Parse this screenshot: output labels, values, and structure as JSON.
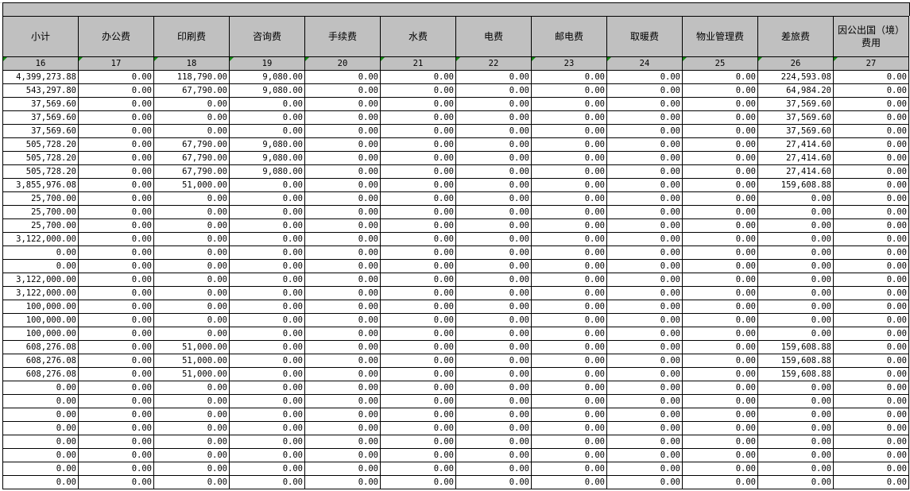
{
  "headers": [
    "小计",
    "办公费",
    "印刷费",
    "咨询费",
    "手续费",
    "水费",
    "电费",
    "邮电费",
    "取暖费",
    "物业管理费",
    "差旅费",
    "因公出国（境）费用"
  ],
  "column_numbers": [
    "16",
    "17",
    "18",
    "19",
    "20",
    "21",
    "22",
    "23",
    "24",
    "25",
    "26",
    "27"
  ],
  "rows": [
    [
      "4,399,273.88",
      "0.00",
      "118,790.00",
      "9,080.00",
      "0.00",
      "0.00",
      "0.00",
      "0.00",
      "0.00",
      "0.00",
      "224,593.08",
      "0.00"
    ],
    [
      "543,297.80",
      "0.00",
      "67,790.00",
      "9,080.00",
      "0.00",
      "0.00",
      "0.00",
      "0.00",
      "0.00",
      "0.00",
      "64,984.20",
      "0.00"
    ],
    [
      "37,569.60",
      "0.00",
      "0.00",
      "0.00",
      "0.00",
      "0.00",
      "0.00",
      "0.00",
      "0.00",
      "0.00",
      "37,569.60",
      "0.00"
    ],
    [
      "37,569.60",
      "0.00",
      "0.00",
      "0.00",
      "0.00",
      "0.00",
      "0.00",
      "0.00",
      "0.00",
      "0.00",
      "37,569.60",
      "0.00"
    ],
    [
      "37,569.60",
      "0.00",
      "0.00",
      "0.00",
      "0.00",
      "0.00",
      "0.00",
      "0.00",
      "0.00",
      "0.00",
      "37,569.60",
      "0.00"
    ],
    [
      "505,728.20",
      "0.00",
      "67,790.00",
      "9,080.00",
      "0.00",
      "0.00",
      "0.00",
      "0.00",
      "0.00",
      "0.00",
      "27,414.60",
      "0.00"
    ],
    [
      "505,728.20",
      "0.00",
      "67,790.00",
      "9,080.00",
      "0.00",
      "0.00",
      "0.00",
      "0.00",
      "0.00",
      "0.00",
      "27,414.60",
      "0.00"
    ],
    [
      "505,728.20",
      "0.00",
      "67,790.00",
      "9,080.00",
      "0.00",
      "0.00",
      "0.00",
      "0.00",
      "0.00",
      "0.00",
      "27,414.60",
      "0.00"
    ],
    [
      "3,855,976.08",
      "0.00",
      "51,000.00",
      "0.00",
      "0.00",
      "0.00",
      "0.00",
      "0.00",
      "0.00",
      "0.00",
      "159,608.88",
      "0.00"
    ],
    [
      "25,700.00",
      "0.00",
      "0.00",
      "0.00",
      "0.00",
      "0.00",
      "0.00",
      "0.00",
      "0.00",
      "0.00",
      "0.00",
      "0.00"
    ],
    [
      "25,700.00",
      "0.00",
      "0.00",
      "0.00",
      "0.00",
      "0.00",
      "0.00",
      "0.00",
      "0.00",
      "0.00",
      "0.00",
      "0.00"
    ],
    [
      "25,700.00",
      "0.00",
      "0.00",
      "0.00",
      "0.00",
      "0.00",
      "0.00",
      "0.00",
      "0.00",
      "0.00",
      "0.00",
      "0.00"
    ],
    [
      "3,122,000.00",
      "0.00",
      "0.00",
      "0.00",
      "0.00",
      "0.00",
      "0.00",
      "0.00",
      "0.00",
      "0.00",
      "0.00",
      "0.00"
    ],
    [
      "0.00",
      "0.00",
      "0.00",
      "0.00",
      "0.00",
      "0.00",
      "0.00",
      "0.00",
      "0.00",
      "0.00",
      "0.00",
      "0.00"
    ],
    [
      "0.00",
      "0.00",
      "0.00",
      "0.00",
      "0.00",
      "0.00",
      "0.00",
      "0.00",
      "0.00",
      "0.00",
      "0.00",
      "0.00"
    ],
    [
      "3,122,000.00",
      "0.00",
      "0.00",
      "0.00",
      "0.00",
      "0.00",
      "0.00",
      "0.00",
      "0.00",
      "0.00",
      "0.00",
      "0.00"
    ],
    [
      "3,122,000.00",
      "0.00",
      "0.00",
      "0.00",
      "0.00",
      "0.00",
      "0.00",
      "0.00",
      "0.00",
      "0.00",
      "0.00",
      "0.00"
    ],
    [
      "100,000.00",
      "0.00",
      "0.00",
      "0.00",
      "0.00",
      "0.00",
      "0.00",
      "0.00",
      "0.00",
      "0.00",
      "0.00",
      "0.00"
    ],
    [
      "100,000.00",
      "0.00",
      "0.00",
      "0.00",
      "0.00",
      "0.00",
      "0.00",
      "0.00",
      "0.00",
      "0.00",
      "0.00",
      "0.00"
    ],
    [
      "100,000.00",
      "0.00",
      "0.00",
      "0.00",
      "0.00",
      "0.00",
      "0.00",
      "0.00",
      "0.00",
      "0.00",
      "0.00",
      "0.00"
    ],
    [
      "608,276.08",
      "0.00",
      "51,000.00",
      "0.00",
      "0.00",
      "0.00",
      "0.00",
      "0.00",
      "0.00",
      "0.00",
      "159,608.88",
      "0.00"
    ],
    [
      "608,276.08",
      "0.00",
      "51,000.00",
      "0.00",
      "0.00",
      "0.00",
      "0.00",
      "0.00",
      "0.00",
      "0.00",
      "159,608.88",
      "0.00"
    ],
    [
      "608,276.08",
      "0.00",
      "51,000.00",
      "0.00",
      "0.00",
      "0.00",
      "0.00",
      "0.00",
      "0.00",
      "0.00",
      "159,608.88",
      "0.00"
    ],
    [
      "0.00",
      "0.00",
      "0.00",
      "0.00",
      "0.00",
      "0.00",
      "0.00",
      "0.00",
      "0.00",
      "0.00",
      "0.00",
      "0.00"
    ],
    [
      "0.00",
      "0.00",
      "0.00",
      "0.00",
      "0.00",
      "0.00",
      "0.00",
      "0.00",
      "0.00",
      "0.00",
      "0.00",
      "0.00"
    ],
    [
      "0.00",
      "0.00",
      "0.00",
      "0.00",
      "0.00",
      "0.00",
      "0.00",
      "0.00",
      "0.00",
      "0.00",
      "0.00",
      "0.00"
    ],
    [
      "0.00",
      "0.00",
      "0.00",
      "0.00",
      "0.00",
      "0.00",
      "0.00",
      "0.00",
      "0.00",
      "0.00",
      "0.00",
      "0.00"
    ],
    [
      "0.00",
      "0.00",
      "0.00",
      "0.00",
      "0.00",
      "0.00",
      "0.00",
      "0.00",
      "0.00",
      "0.00",
      "0.00",
      "0.00"
    ],
    [
      "0.00",
      "0.00",
      "0.00",
      "0.00",
      "0.00",
      "0.00",
      "0.00",
      "0.00",
      "0.00",
      "0.00",
      "0.00",
      "0.00"
    ],
    [
      "0.00",
      "0.00",
      "0.00",
      "0.00",
      "0.00",
      "0.00",
      "0.00",
      "0.00",
      "0.00",
      "0.00",
      "0.00",
      "0.00"
    ],
    [
      "0.00",
      "0.00",
      "0.00",
      "0.00",
      "0.00",
      "0.00",
      "0.00",
      "0.00",
      "0.00",
      "0.00",
      "0.00",
      "0.00"
    ]
  ],
  "colors": {
    "header_bg": "#c0c0c0",
    "comment_marker": "#138a13"
  }
}
